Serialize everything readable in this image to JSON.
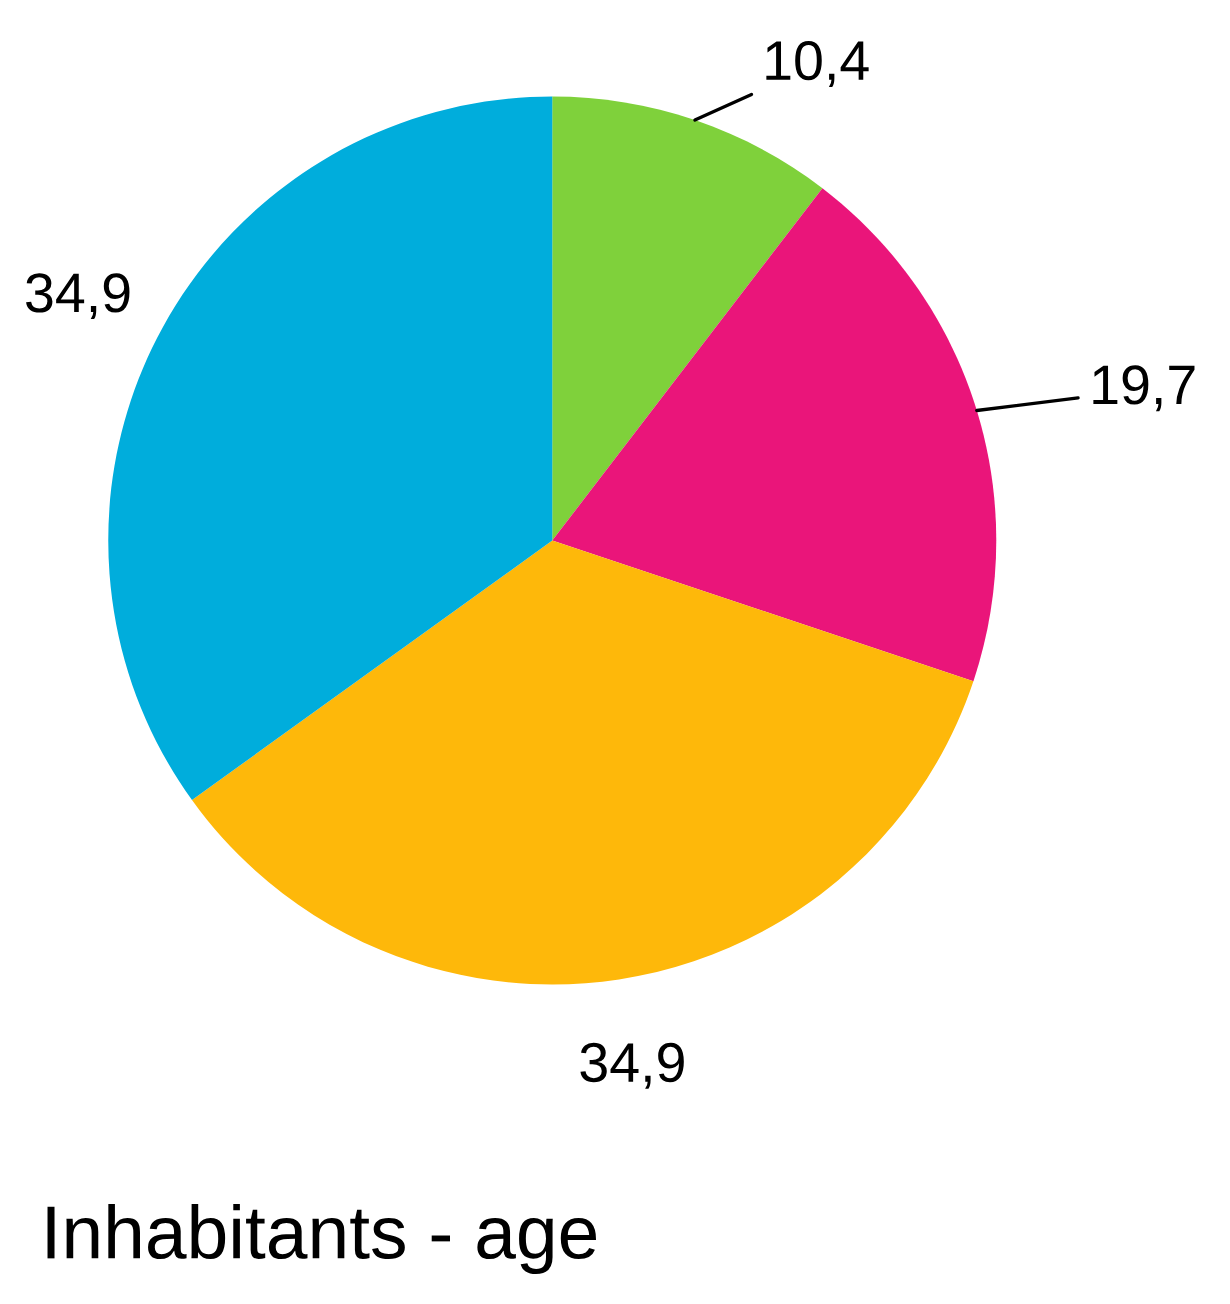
{
  "chart_data": {
    "type": "pie",
    "title": "Inhabitants - age",
    "categories": [
      null,
      null,
      null,
      null
    ],
    "values": [
      10.4,
      19.7,
      34.9,
      34.9
    ],
    "value_labels": [
      "10,4",
      "19,7",
      "34,9",
      "34,9"
    ],
    "colors": [
      "#7fd13b",
      "#ea157a",
      "#feb80a",
      "#00addc"
    ]
  }
}
